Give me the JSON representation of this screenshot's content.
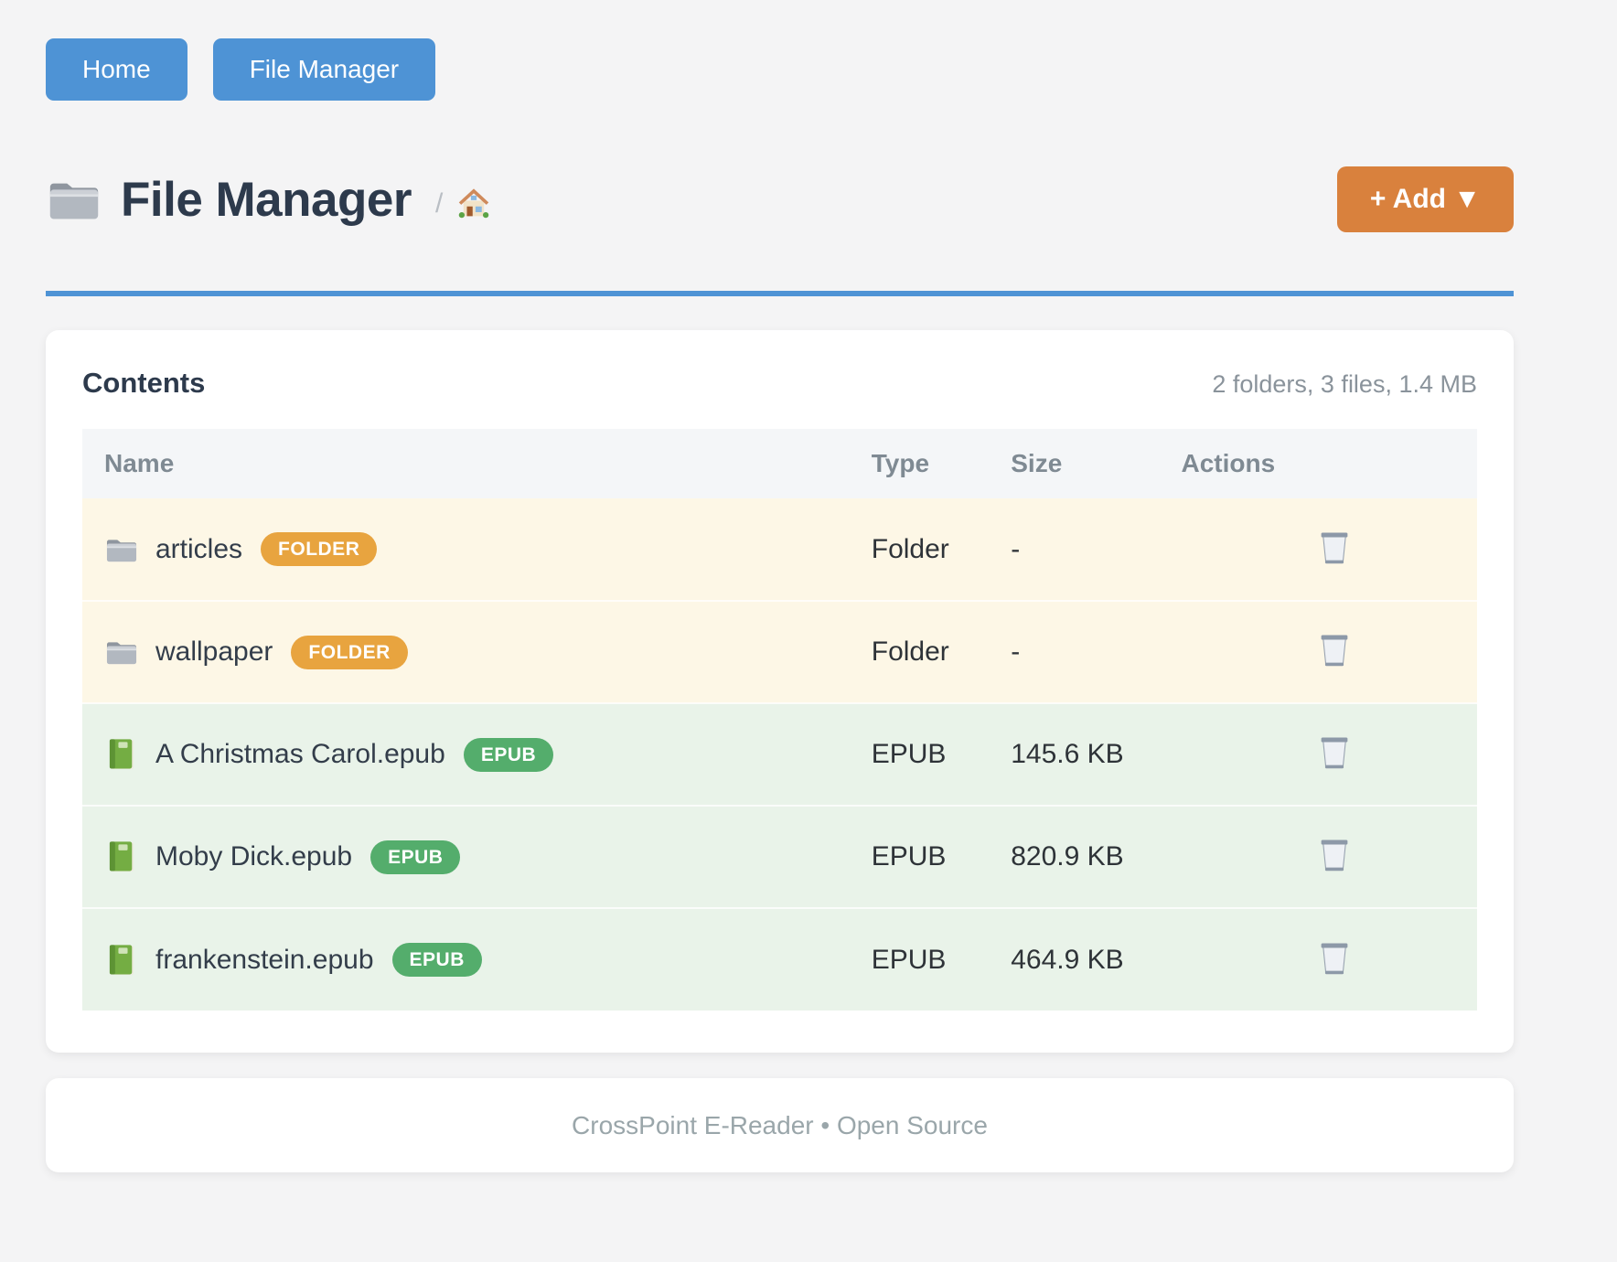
{
  "nav": {
    "home_label": "Home",
    "file_manager_label": "File Manager"
  },
  "header": {
    "title": "File Manager",
    "title_icon": "folder-icon",
    "breadcrumb_separator": "/",
    "breadcrumb_home_icon": "house-icon",
    "add_button_label": "+ Add ▼"
  },
  "contents": {
    "heading": "Contents",
    "summary": "2 folders, 3 files, 1.4 MB",
    "columns": [
      "Name",
      "Type",
      "Size",
      "Actions"
    ],
    "action_icon": "trash-icon",
    "rows": [
      {
        "name": "articles",
        "icon": "folder-icon",
        "badge": "FOLDER",
        "badge_color": "#e8a43f",
        "type": "Folder",
        "size": "-",
        "kind": "folder"
      },
      {
        "name": "wallpaper",
        "icon": "folder-icon",
        "badge": "FOLDER",
        "badge_color": "#e8a43f",
        "type": "Folder",
        "size": "-",
        "kind": "folder"
      },
      {
        "name": "A Christmas Carol.epub",
        "icon": "book-icon",
        "badge": "EPUB",
        "badge_color": "#54ad6c",
        "type": "EPUB",
        "size": "145.6 KB",
        "kind": "file"
      },
      {
        "name": "Moby Dick.epub",
        "icon": "book-icon",
        "badge": "EPUB",
        "badge_color": "#54ad6c",
        "type": "EPUB",
        "size": "820.9 KB",
        "kind": "file"
      },
      {
        "name": "frankenstein.epub",
        "icon": "book-icon",
        "badge": "EPUB",
        "badge_color": "#54ad6c",
        "type": "EPUB",
        "size": "464.9 KB",
        "kind": "file"
      }
    ]
  },
  "footer": {
    "text": "CrossPoint E-Reader • Open Source"
  },
  "colors": {
    "primary_blue": "#4e93d5",
    "accent_orange": "#d9813d",
    "badge_orange": "#e8a43f",
    "badge_green": "#54ad6c",
    "folder_row_bg": "#fdf7e6",
    "file_row_bg": "#e9f3e9"
  }
}
